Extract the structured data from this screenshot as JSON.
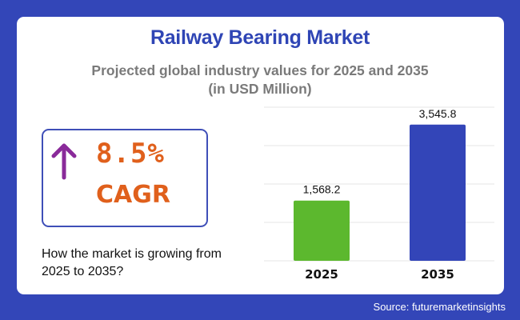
{
  "header": {
    "title": "Railway Bearing Market",
    "subtitle_line1": "Projected global industry values for 2025 and 2035",
    "subtitle_line2": "(in USD Million)"
  },
  "cagr": {
    "icon": "arrow-up-icon",
    "value": "8.5%",
    "label": "CAGR",
    "arrow_color": "#8a2a9a",
    "text_color": "#e0601c"
  },
  "question": "How the market is growing from 2025 to 2035?",
  "source": "Source: futuremarketinsights",
  "colors": {
    "background": "#3346b8",
    "title": "#2f45b5"
  },
  "chart_data": {
    "type": "bar",
    "categories": [
      "2025",
      "2035"
    ],
    "values": [
      1568.2,
      3545.8
    ],
    "data_labels": [
      "1,568.2",
      "3,545.8"
    ],
    "colors": [
      "#5cb82e",
      "#3345b8"
    ],
    "ylim": [
      0,
      4000
    ],
    "grid": true,
    "y_tick_labels_visible": false
  }
}
